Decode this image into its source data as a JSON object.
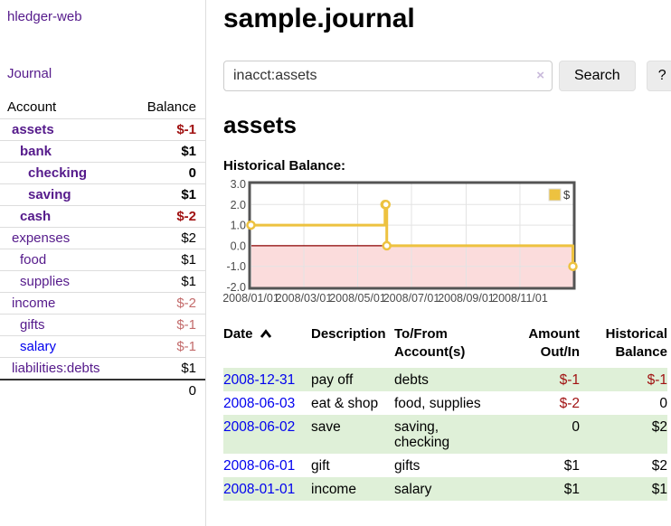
{
  "colors": {
    "link_purple": "#551a8b",
    "link_blue": "#0000ee",
    "negative": "#a11212",
    "negative_muted": "#c36b6b",
    "stripe_green": "#dff0d8",
    "series_yellow": "#EDC240",
    "negative_region": "#fbdcdc",
    "zero_line": "#8b0000",
    "chart_border": "#545454",
    "grid": "#e3e3e3",
    "tick_text": "#4a4a4a"
  },
  "sidebar": {
    "brand": "hledger-web",
    "nav_journal": "Journal",
    "accounts_table": {
      "headers": {
        "account": "Account",
        "balance": "Balance"
      },
      "rows": [
        {
          "name": "assets",
          "balance": "$-1",
          "indent": 0,
          "bold": true,
          "balance_class": "neg"
        },
        {
          "name": "bank",
          "balance": "$1",
          "indent": 1,
          "bold": true,
          "balance_class": ""
        },
        {
          "name": "checking",
          "balance": "0",
          "indent": 2,
          "bold": true,
          "balance_class": ""
        },
        {
          "name": "saving",
          "balance": "$1",
          "indent": 2,
          "bold": true,
          "balance_class": ""
        },
        {
          "name": "cash",
          "balance": "$-2",
          "indent": 1,
          "bold": true,
          "balance_class": "neg"
        },
        {
          "name": "expenses",
          "balance": "$2",
          "indent": 0,
          "bold": false,
          "balance_class": ""
        },
        {
          "name": "food",
          "balance": "$1",
          "indent": 1,
          "bold": false,
          "balance_class": ""
        },
        {
          "name": "supplies",
          "balance": "$1",
          "indent": 1,
          "bold": false,
          "balance_class": ""
        },
        {
          "name": "income",
          "balance": "$-2",
          "indent": 0,
          "bold": false,
          "balance_class": "neg-light"
        },
        {
          "name": "gifts",
          "balance": "$-1",
          "indent": 1,
          "bold": false,
          "balance_class": "neg-light"
        },
        {
          "name": "salary",
          "balance": "$-1",
          "indent": 1,
          "bold": false,
          "balance_class": "neg-light",
          "link_color": "blue"
        },
        {
          "name": "liabilities:debts",
          "balance": "$1",
          "indent": 0,
          "bold": false,
          "balance_class": ""
        }
      ],
      "total": "0"
    }
  },
  "main": {
    "title": "sample.journal",
    "search": {
      "value": "inacct:assets",
      "clear_icon": "×",
      "button": "Search",
      "help_button": "?"
    },
    "account_heading": "assets",
    "chart_label": "Historical Balance:",
    "register_table": {
      "columns": [
        {
          "line1": "Date",
          "line2": "",
          "sortable": true,
          "align": "left"
        },
        {
          "line1": "Description",
          "line2": "",
          "align": "left"
        },
        {
          "line1": "To/From",
          "line2": "Account(s)",
          "align": "left"
        },
        {
          "line1": "Amount",
          "line2": "Out/In",
          "align": "right"
        },
        {
          "line1": "Historical",
          "line2": "Balance",
          "align": "right"
        }
      ],
      "rows": [
        {
          "date": "2008-12-31",
          "description": "pay off",
          "accounts": "debts",
          "amount": "$-1",
          "amount_class": "neg",
          "balance": "$-1",
          "balance_class": "neg",
          "striped": true
        },
        {
          "date": "2008-06-03",
          "description": "eat & shop",
          "accounts": "food, supplies",
          "amount": "$-2",
          "amount_class": "neg",
          "balance": "0",
          "balance_class": "",
          "striped": false
        },
        {
          "date": "2008-06-02",
          "description": "save",
          "accounts": "saving, checking",
          "amount": "0",
          "amount_class": "",
          "balance": "$2",
          "balance_class": "",
          "striped": true
        },
        {
          "date": "2008-06-01",
          "description": "gift",
          "accounts": "gifts",
          "amount": "$1",
          "amount_class": "",
          "balance": "$2",
          "balance_class": "",
          "striped": false
        },
        {
          "date": "2008-01-01",
          "description": "income",
          "accounts": "salary",
          "amount": "$1",
          "amount_class": "",
          "balance": "$1",
          "balance_class": "",
          "striped": true
        }
      ]
    }
  },
  "chart_data": {
    "type": "line",
    "mode": "steps",
    "title": "Historical Balance",
    "x_domain": [
      "2008-01-01",
      "2008-12-31"
    ],
    "ylim": [
      -2,
      3
    ],
    "y_ticks": [
      "3.0",
      "2.0",
      "1.0",
      "0.0",
      "-1.0",
      "-2.0"
    ],
    "x_ticks": [
      "2008/01/01",
      "2008/03/01",
      "2008/05/01",
      "2008/07/01",
      "2008/09/01",
      "2008/11/01"
    ],
    "series": [
      {
        "name": "$",
        "color": "#EDC240",
        "points": [
          [
            "2008-01-01",
            1
          ],
          [
            "2008-06-01",
            2
          ],
          [
            "2008-06-02",
            2
          ],
          [
            "2008-06-03",
            0
          ],
          [
            "2008-12-31",
            -1
          ]
        ]
      }
    ],
    "legend": {
      "label": "$",
      "position": "top-right"
    },
    "grid": true
  }
}
